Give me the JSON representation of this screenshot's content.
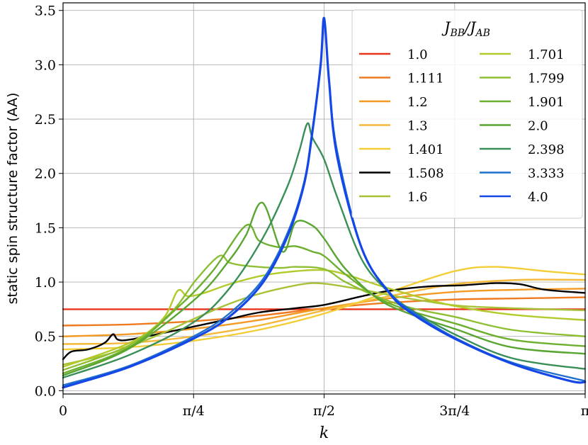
{
  "chart_data": {
    "type": "line",
    "title": "",
    "xlabel": "k",
    "ylabel": "static spin structure factor (AA)",
    "xlim": [
      0,
      3.1416
    ],
    "ylim": [
      -0.03,
      3.57
    ],
    "grid": true,
    "x_ticks": [
      {
        "value": 0,
        "label": "0"
      },
      {
        "value": 0.7854,
        "label": "π/4"
      },
      {
        "value": 1.5708,
        "label": "π/2"
      },
      {
        "value": 2.3562,
        "label": "3π/4"
      },
      {
        "value": 3.1416,
        "label": "π"
      }
    ],
    "y_ticks": [
      {
        "value": 0.0,
        "label": "0.0"
      },
      {
        "value": 0.5,
        "label": "0.5"
      },
      {
        "value": 1.0,
        "label": "1.0"
      },
      {
        "value": 1.5,
        "label": "1.5"
      },
      {
        "value": 2.0,
        "label": "2.0"
      },
      {
        "value": 2.5,
        "label": "2.5"
      },
      {
        "value": 3.0,
        "label": "3.0"
      },
      {
        "value": 3.5,
        "label": "3.5"
      }
    ],
    "legend": {
      "title": "J_BB/J_AB",
      "title_base": "J",
      "title_sub1": "BB",
      "title_sep": "/J",
      "title_sub2": "AB",
      "placement": "top-right",
      "columns": 2
    },
    "series": [
      {
        "name": "1.0",
        "color": "#e8341c",
        "points": [
          [
            0,
            0.75
          ],
          [
            0.785,
            0.75
          ],
          [
            1.571,
            0.75
          ],
          [
            2.356,
            0.75
          ],
          [
            3.14,
            0.75
          ]
        ]
      },
      {
        "name": "1.111",
        "color": "#ee7a22",
        "points": [
          [
            0,
            0.6
          ],
          [
            0.393,
            0.61
          ],
          [
            0.785,
            0.64
          ],
          [
            1.178,
            0.69
          ],
          [
            1.571,
            0.76
          ],
          [
            1.963,
            0.81
          ],
          [
            2.356,
            0.84
          ],
          [
            2.749,
            0.85
          ],
          [
            3.14,
            0.86
          ]
        ]
      },
      {
        "name": "1.2",
        "color": "#f39a24",
        "points": [
          [
            0,
            0.5
          ],
          [
            0.393,
            0.52
          ],
          [
            0.785,
            0.57
          ],
          [
            1.178,
            0.65
          ],
          [
            1.571,
            0.76
          ],
          [
            1.963,
            0.85
          ],
          [
            2.356,
            0.91
          ],
          [
            2.749,
            0.93
          ],
          [
            3.14,
            0.94
          ]
        ]
      },
      {
        "name": "1.3",
        "color": "#f5b83a",
        "points": [
          [
            0,
            0.43
          ],
          [
            0.393,
            0.44
          ],
          [
            0.785,
            0.5
          ],
          [
            1.178,
            0.6
          ],
          [
            1.571,
            0.74
          ],
          [
            1.963,
            0.87
          ],
          [
            2.356,
            0.98
          ],
          [
            2.749,
            1.02
          ],
          [
            3.14,
            1.02
          ]
        ]
      },
      {
        "name": "1.401",
        "color": "#f3cd36",
        "points": [
          [
            0,
            0.38
          ],
          [
            0.393,
            0.4
          ],
          [
            0.785,
            0.46
          ],
          [
            1.178,
            0.56
          ],
          [
            1.571,
            0.71
          ],
          [
            1.963,
            0.91
          ],
          [
            2.356,
            1.1
          ],
          [
            2.6,
            1.14
          ],
          [
            2.9,
            1.1
          ],
          [
            3.14,
            1.07
          ]
        ]
      },
      {
        "name": "1.508",
        "color": "#000000",
        "points": [
          [
            0,
            0.29
          ],
          [
            0.05,
            0.36
          ],
          [
            0.15,
            0.38
          ],
          [
            0.25,
            0.44
          ],
          [
            0.3,
            0.52
          ],
          [
            0.33,
            0.47
          ],
          [
            0.4,
            0.47
          ],
          [
            0.6,
            0.53
          ],
          [
            0.785,
            0.59
          ],
          [
            1.0,
            0.66
          ],
          [
            1.178,
            0.72
          ],
          [
            1.4,
            0.76
          ],
          [
            1.571,
            0.79
          ],
          [
            1.8,
            0.87
          ],
          [
            1.963,
            0.92
          ],
          [
            2.2,
            0.96
          ],
          [
            2.4,
            0.97
          ],
          [
            2.6,
            0.99
          ],
          [
            2.75,
            0.98
          ],
          [
            2.9,
            0.93
          ],
          [
            3.14,
            0.9
          ]
        ]
      },
      {
        "name": "1.6",
        "color": "#a7c237",
        "points": [
          [
            0,
            0.24
          ],
          [
            0.3,
            0.35
          ],
          [
            0.6,
            0.53
          ],
          [
            0.785,
            0.66
          ],
          [
            1.0,
            0.8
          ],
          [
            1.2,
            0.9
          ],
          [
            1.4,
            0.97
          ],
          [
            1.5,
            0.99
          ],
          [
            1.6,
            0.98
          ],
          [
            1.8,
            0.93
          ],
          [
            2.0,
            0.87
          ],
          [
            2.2,
            0.82
          ],
          [
            2.4,
            0.78
          ],
          [
            2.7,
            0.76
          ],
          [
            3.14,
            0.74
          ]
        ]
      },
      {
        "name": "1.701",
        "color": "#b4c92a",
        "points": [
          [
            0,
            0.22
          ],
          [
            0.4,
            0.44
          ],
          [
            0.6,
            0.66
          ],
          [
            0.69,
            0.92
          ],
          [
            0.75,
            0.87
          ],
          [
            0.85,
            0.9
          ],
          [
            1.0,
            0.98
          ],
          [
            1.2,
            1.06
          ],
          [
            1.4,
            1.1
          ],
          [
            1.571,
            1.11
          ],
          [
            1.7,
            1.07
          ],
          [
            1.9,
            0.97
          ],
          [
            2.1,
            0.88
          ],
          [
            2.356,
            0.78
          ],
          [
            2.7,
            0.7
          ],
          [
            3.14,
            0.65
          ]
        ]
      },
      {
        "name": "1.799",
        "color": "#8ebf33",
        "points": [
          [
            0,
            0.19
          ],
          [
            0.4,
            0.42
          ],
          [
            0.65,
            0.72
          ],
          [
            0.8,
            1.02
          ],
          [
            0.94,
            1.24
          ],
          [
            1.0,
            1.18
          ],
          [
            1.1,
            1.15
          ],
          [
            1.3,
            1.13
          ],
          [
            1.4,
            1.14
          ],
          [
            1.571,
            1.12
          ],
          [
            1.7,
            1.0
          ],
          [
            1.9,
            0.86
          ],
          [
            2.1,
            0.76
          ],
          [
            2.356,
            0.68
          ],
          [
            2.7,
            0.56
          ],
          [
            3.14,
            0.5
          ]
        ]
      },
      {
        "name": "1.901",
        "color": "#6daf2e",
        "points": [
          [
            0,
            0.16
          ],
          [
            0.4,
            0.4
          ],
          [
            0.7,
            0.78
          ],
          [
            0.9,
            1.1
          ],
          [
            1.1,
            1.52
          ],
          [
            1.18,
            1.38
          ],
          [
            1.3,
            1.32
          ],
          [
            1.4,
            1.33
          ],
          [
            1.5,
            1.28
          ],
          [
            1.571,
            1.24
          ],
          [
            1.7,
            1.07
          ],
          [
            1.9,
            0.85
          ],
          [
            2.1,
            0.73
          ],
          [
            2.356,
            0.62
          ],
          [
            2.7,
            0.47
          ],
          [
            3.14,
            0.41
          ]
        ]
      },
      {
        "name": "2.0",
        "color": "#58a62f",
        "points": [
          [
            0,
            0.14
          ],
          [
            0.4,
            0.39
          ],
          [
            0.8,
            0.85
          ],
          [
            1.0,
            1.2
          ],
          [
            1.1,
            1.43
          ],
          [
            1.2,
            1.73
          ],
          [
            1.32,
            1.28
          ],
          [
            1.4,
            1.55
          ],
          [
            1.5,
            1.52
          ],
          [
            1.571,
            1.4
          ],
          [
            1.7,
            1.12
          ],
          [
            1.9,
            0.84
          ],
          [
            2.1,
            0.7
          ],
          [
            2.356,
            0.57
          ],
          [
            2.7,
            0.4
          ],
          [
            3.14,
            0.34
          ]
        ]
      },
      {
        "name": "2.398",
        "color": "#3a8f58",
        "points": [
          [
            0,
            0.12
          ],
          [
            0.4,
            0.33
          ],
          [
            0.785,
            0.63
          ],
          [
            1.0,
            0.94
          ],
          [
            1.2,
            1.4
          ],
          [
            1.35,
            1.88
          ],
          [
            1.42,
            2.2
          ],
          [
            1.47,
            2.46
          ],
          [
            1.5,
            2.33
          ],
          [
            1.571,
            2.13
          ],
          [
            1.65,
            1.78
          ],
          [
            1.8,
            1.2
          ],
          [
            1.963,
            0.9
          ],
          [
            2.1,
            0.74
          ],
          [
            2.356,
            0.52
          ],
          [
            2.7,
            0.3
          ],
          [
            3.14,
            0.2
          ]
        ]
      },
      {
        "name": "3.333",
        "color": "#1f6fcc",
        "points": [
          [
            0,
            0.05
          ],
          [
            0.4,
            0.23
          ],
          [
            0.785,
            0.5
          ],
          [
            1.0,
            0.71
          ],
          [
            1.2,
            1.02
          ],
          [
            1.35,
            1.45
          ],
          [
            1.45,
            1.92
          ],
          [
            1.5,
            2.4
          ],
          [
            1.55,
            3.0
          ],
          [
            1.571,
            3.42
          ],
          [
            1.6,
            2.85
          ],
          [
            1.65,
            2.2
          ],
          [
            1.8,
            1.3
          ],
          [
            1.963,
            0.91
          ],
          [
            2.1,
            0.73
          ],
          [
            2.356,
            0.49
          ],
          [
            2.7,
            0.26
          ],
          [
            3.14,
            0.09
          ]
        ]
      },
      {
        "name": "4.0",
        "color": "#1547e8",
        "points": [
          [
            0,
            0.03
          ],
          [
            0.4,
            0.22
          ],
          [
            0.785,
            0.48
          ],
          [
            1.0,
            0.68
          ],
          [
            1.2,
            0.99
          ],
          [
            1.35,
            1.42
          ],
          [
            1.45,
            1.9
          ],
          [
            1.5,
            2.38
          ],
          [
            1.55,
            3.0
          ],
          [
            1.571,
            3.43
          ],
          [
            1.6,
            2.86
          ],
          [
            1.65,
            2.15
          ],
          [
            1.8,
            1.3
          ],
          [
            1.963,
            0.9
          ],
          [
            2.1,
            0.71
          ],
          [
            2.356,
            0.48
          ],
          [
            2.7,
            0.25
          ],
          [
            3.05,
            0.09
          ],
          [
            3.14,
            0.08
          ]
        ]
      }
    ]
  }
}
